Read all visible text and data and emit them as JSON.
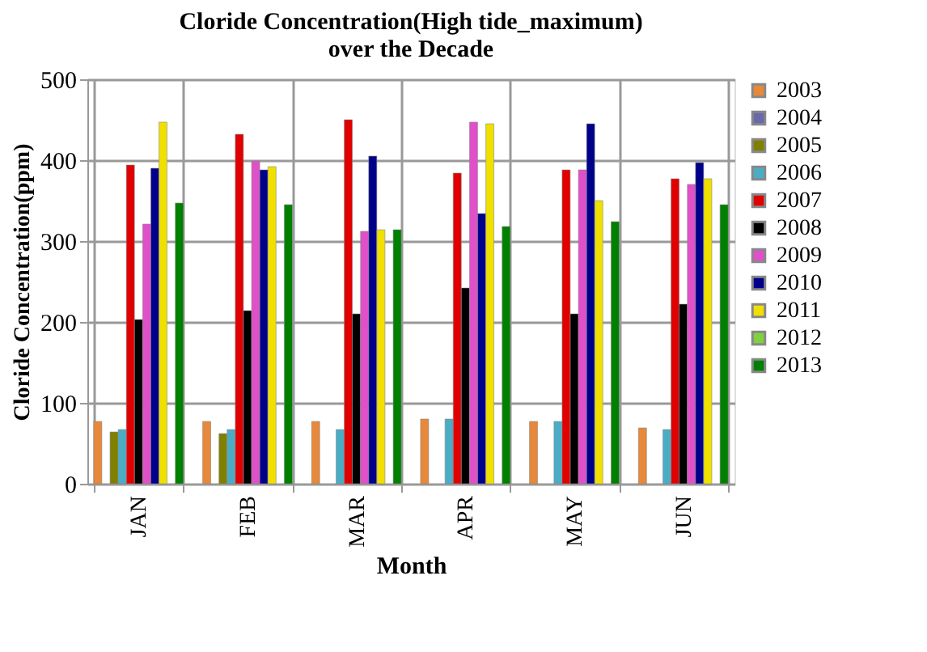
{
  "chart_data": {
    "type": "bar",
    "title": [
      "Cloride Concentration(High tide_maximum)",
      "over the Decade"
    ],
    "xlabel": "Month",
    "ylabel": "Cloride Concentration(ppm)",
    "categories": [
      "JAN",
      "FEB",
      "MAR",
      "APR",
      "MAY",
      "JUN"
    ],
    "series": [
      {
        "name": "2003",
        "color": "#e8883a",
        "values": [
          77,
          77,
          77,
          80,
          77,
          69
        ]
      },
      {
        "name": "2004",
        "color": "#6a6aaa",
        "values": [
          null,
          null,
          null,
          null,
          null,
          null
        ]
      },
      {
        "name": "2005",
        "color": "#808000",
        "values": [
          64,
          62,
          null,
          null,
          null,
          null
        ]
      },
      {
        "name": "2006",
        "color": "#4bacc6",
        "values": [
          67,
          67,
          67,
          80,
          77,
          67
        ]
      },
      {
        "name": "2007",
        "color": "#e00000",
        "values": [
          394,
          432,
          450,
          384,
          388,
          377
        ]
      },
      {
        "name": "2008",
        "color": "#000000",
        "values": [
          203,
          214,
          210,
          242,
          210,
          222
        ]
      },
      {
        "name": "2009",
        "color": "#e050c8",
        "values": [
          321,
          399,
          312,
          447,
          388,
          370
        ]
      },
      {
        "name": "2010",
        "color": "#00008b",
        "values": [
          390,
          388,
          405,
          334,
          445,
          397
        ]
      },
      {
        "name": "2011",
        "color": "#f0e000",
        "values": [
          447,
          392,
          314,
          445,
          350,
          377
        ]
      },
      {
        "name": "2012",
        "color": "#80d040",
        "values": [
          null,
          null,
          null,
          null,
          null,
          null
        ]
      },
      {
        "name": "2013",
        "color": "#008000",
        "values": [
          347,
          345,
          314,
          318,
          324,
          345
        ]
      }
    ],
    "ylim": [
      0,
      500
    ],
    "yticks": [
      0,
      100,
      200,
      300,
      400,
      500
    ],
    "grid": true,
    "legend": "right"
  }
}
